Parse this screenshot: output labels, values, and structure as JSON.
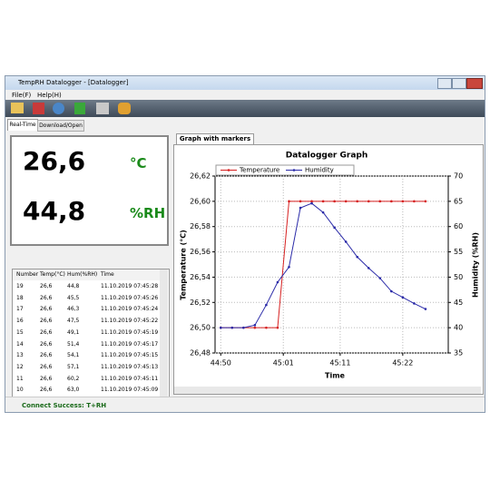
{
  "window": {
    "title": "TempRH Datalogger - [Datalogger]",
    "menu": [
      "File(F)",
      "Help(H)"
    ],
    "tabs": [
      "Real-Time",
      "Download/Open"
    ],
    "status": "Connect Success: T+RH"
  },
  "readings": {
    "temperature": "26,6",
    "temperature_unit": "°C",
    "humidity": "44,8",
    "humidity_unit": "%RH"
  },
  "table": {
    "columns": [
      "Number",
      "Temp(°C)",
      "Hum(%RH)",
      "Time"
    ],
    "rows": [
      [
        "19",
        "26,6",
        "44,8",
        "11.10.2019 07:45:28"
      ],
      [
        "18",
        "26,6",
        "45,5",
        "11.10.2019 07:45:26"
      ],
      [
        "17",
        "26,6",
        "46,3",
        "11.10.2019 07:45:24"
      ],
      [
        "16",
        "26,6",
        "47,5",
        "11.10.2019 07:45:22"
      ],
      [
        "15",
        "26,6",
        "49,1",
        "11.10.2019 07:45:19"
      ],
      [
        "14",
        "26,6",
        "51,4",
        "11.10.2019 07:45:17"
      ],
      [
        "13",
        "26,6",
        "54,1",
        "11.10.2019 07:45:15"
      ],
      [
        "12",
        "26,6",
        "57,1",
        "11.10.2019 07:45:13"
      ],
      [
        "11",
        "26,6",
        "60,2",
        "11.10.2019 07:45:11"
      ],
      [
        "10",
        "26,6",
        "63,0",
        "11.10.2019 07:45:09"
      ]
    ]
  },
  "graph_tab": "Graph with markers",
  "chart_data": {
    "type": "line",
    "title": "Datalogger Graph",
    "xlabel": "Time",
    "ylabel": "Temperature (°C)",
    "y2label": "Humidity (%RH)",
    "x": [
      "44:50",
      "44:52",
      "44:54",
      "44:56",
      "44:58",
      "45:00",
      "45:02",
      "45:04",
      "45:06",
      "45:08",
      "45:10",
      "45:12",
      "45:14",
      "45:16",
      "45:18",
      "45:20",
      "45:22",
      "45:24",
      "45:26"
    ],
    "series": [
      {
        "name": "Temperature",
        "color": "#d62020",
        "values": [
          26.5,
          26.5,
          26.5,
          26.5,
          26.5,
          26.5,
          26.6,
          26.6,
          26.6,
          26.6,
          26.6,
          26.6,
          26.6,
          26.6,
          26.6,
          26.6,
          26.6,
          26.6,
          26.6
        ]
      },
      {
        "name": "Humidity",
        "color": "#2a2aa8",
        "axis": "y2",
        "values": [
          40,
          40,
          40,
          40.5,
          44.5,
          49,
          52,
          63.7,
          64.6,
          62.8,
          59.8,
          57,
          54,
          51.8,
          49.8,
          47.2,
          46,
          44.8,
          43.7
        ]
      }
    ],
    "xlim": [
      "44:49",
      "45:30"
    ],
    "xticks": [
      "44:50",
      "45:01",
      "45:11",
      "45:22"
    ],
    "ylim": [
      26.48,
      26.62
    ],
    "yticks": [
      {
        "value": 26.48,
        "label": "26,48"
      },
      {
        "value": 26.5,
        "label": "26,50"
      },
      {
        "value": 26.52,
        "label": "26,52"
      },
      {
        "value": 26.54,
        "label": "26,54"
      },
      {
        "value": 26.56,
        "label": "26,56"
      },
      {
        "value": 26.58,
        "label": "26,58"
      },
      {
        "value": 26.6,
        "label": "26,60"
      },
      {
        "value": 26.62,
        "label": "26,62"
      }
    ],
    "y2lim": [
      35,
      70
    ],
    "y2ticks": [
      35,
      40,
      45,
      50,
      55,
      60,
      65,
      70
    ],
    "grid": true,
    "legend": "top"
  }
}
